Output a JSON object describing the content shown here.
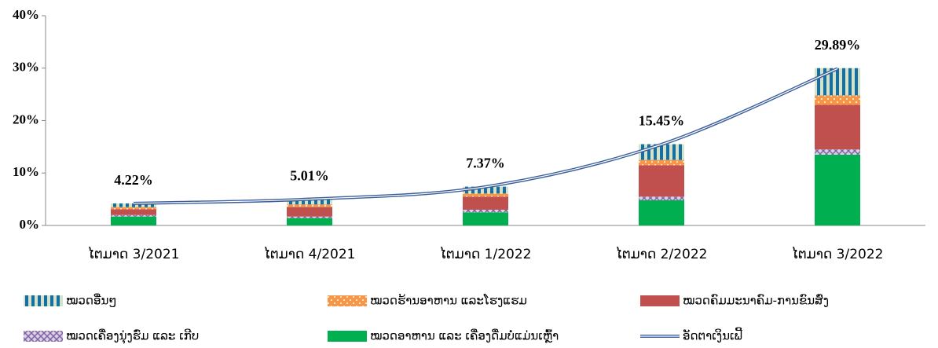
{
  "chart_data": {
    "type": "bar",
    "stacked": true,
    "categories": [
      "ໄຕມາດ 3/2021",
      "ໄຕມາດ 4/2021",
      "ໄຕມາດ 1/2022",
      "ໄຕມາດ 2/2022",
      "ໄຕມາດ 3/2022"
    ],
    "series": [
      {
        "name": "ໝວດອື່ນໆ",
        "color": "#1a6f9a",
        "pattern": "stripes",
        "values": [
          0.7,
          1.0,
          1.3,
          3.0,
          5.2
        ]
      },
      {
        "name": "ໝວດຮ້ານອາຫານ ແລະໂຮງແຮມ",
        "color": "#f79646",
        "pattern": "dots",
        "values": [
          0.4,
          0.5,
          0.6,
          1.0,
          1.8
        ]
      },
      {
        "name": "ໝວດຄົມມະນາຄົມ-ການຂົນສົ່ງ",
        "color": "#c0504d",
        "pattern": "solid",
        "values": [
          1.1,
          1.8,
          2.5,
          6.0,
          8.5
        ]
      },
      {
        "name": "ໝວດເຄື່ອງນຸ່ງຮົ່ມ ແລະ ເກີບ",
        "color": "#8064a2",
        "pattern": "crosshatch",
        "values": [
          0.3,
          0.3,
          0.5,
          0.7,
          1.0
        ]
      },
      {
        "name": "ໝວດອາຫານ ແລະ ເຄື່ອງດື່ມບໍ່ແມ່ນເຫຼົ້າ",
        "color": "#00b050",
        "pattern": "solid",
        "values": [
          1.7,
          1.4,
          2.5,
          4.8,
          13.5
        ]
      },
      {
        "name": "ອັດຕາເງິນເຟີ້",
        "color": "#3c5f9c",
        "type": "line",
        "values": [
          4.22,
          5.01,
          7.37,
          15.45,
          29.89
        ],
        "value_labels": [
          "4.22%",
          "5.01%",
          "7.37%",
          "15.45%",
          "29.89%"
        ]
      }
    ],
    "ylim": [
      0,
      40
    ],
    "yticks": [
      {
        "value": 0,
        "label": "0%"
      },
      {
        "value": 10,
        "label": "10%"
      },
      {
        "value": 20,
        "label": "20%"
      },
      {
        "value": 30,
        "label": "30%"
      },
      {
        "value": 40,
        "label": "40%"
      }
    ],
    "grid": false,
    "legend": "bottom"
  }
}
